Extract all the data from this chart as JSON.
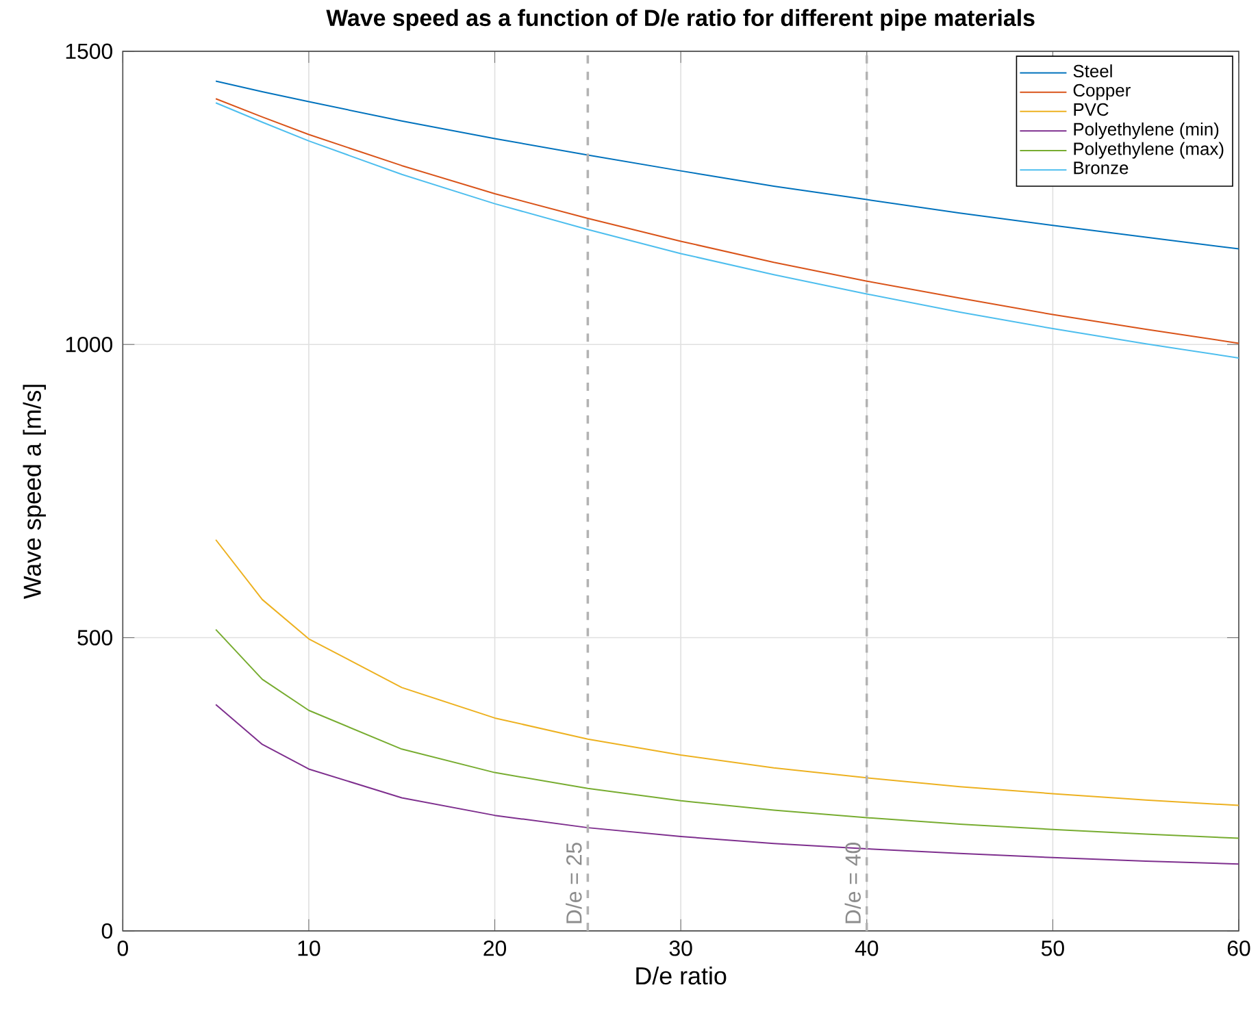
{
  "chart_data": {
    "type": "line",
    "title": "Wave speed as a function of D/e ratio for different pipe materials",
    "xlabel": "D/e ratio",
    "ylabel": "Wave speed a [m/s]",
    "x": [
      5,
      7.5,
      10,
      15,
      20,
      25,
      30,
      35,
      40,
      45,
      50,
      55,
      60
    ],
    "series": [
      {
        "name": "Steel",
        "color": "#0072bd",
        "values": [
          1449,
          1431,
          1414,
          1381,
          1351,
          1323,
          1296,
          1270,
          1247,
          1224,
          1203,
          1183,
          1163
        ]
      },
      {
        "name": "Copper",
        "color": "#d95319",
        "values": [
          1419,
          1388,
          1358,
          1305,
          1257,
          1215,
          1176,
          1140,
          1108,
          1079,
          1051,
          1026,
          1002
        ]
      },
      {
        "name": "PVC",
        "color": "#edb120",
        "values": [
          667,
          565,
          498,
          415,
          363,
          327,
          300,
          278,
          261,
          246,
          234,
          223,
          214
        ]
      },
      {
        "name": "Polyethylene (min)",
        "color": "#7e2f8e",
        "values": [
          386,
          318,
          276,
          227,
          197,
          176,
          161,
          149,
          140,
          132,
          125,
          119,
          114
        ]
      },
      {
        "name": "Polyethylene (max)",
        "color": "#77ac30",
        "values": [
          514,
          429,
          376,
          310,
          270,
          243,
          222,
          206,
          193,
          182,
          173,
          165,
          158
        ]
      },
      {
        "name": "Bronze",
        "color": "#4dbeee",
        "values": [
          1412,
          1379,
          1347,
          1290,
          1240,
          1196,
          1155,
          1119,
          1086,
          1055,
          1027,
          1001,
          977
        ]
      }
    ],
    "xlim": [
      0,
      60
    ],
    "ylim": [
      0,
      1500
    ],
    "xticks": [
      0,
      10,
      20,
      30,
      40,
      50,
      60
    ],
    "yticks": [
      0,
      500,
      1000,
      1500
    ],
    "ref_lines": [
      {
        "axis": "x",
        "value": 25,
        "label": "D/e = 25",
        "color": "#b3b3b3",
        "line_style": "dashed"
      },
      {
        "axis": "x",
        "value": 40,
        "label": "D/e = 40",
        "color": "#b3b3b3",
        "line_style": "dashed"
      }
    ],
    "grid": true,
    "legend": "top right",
    "line_style": "solid",
    "marker": "none"
  }
}
